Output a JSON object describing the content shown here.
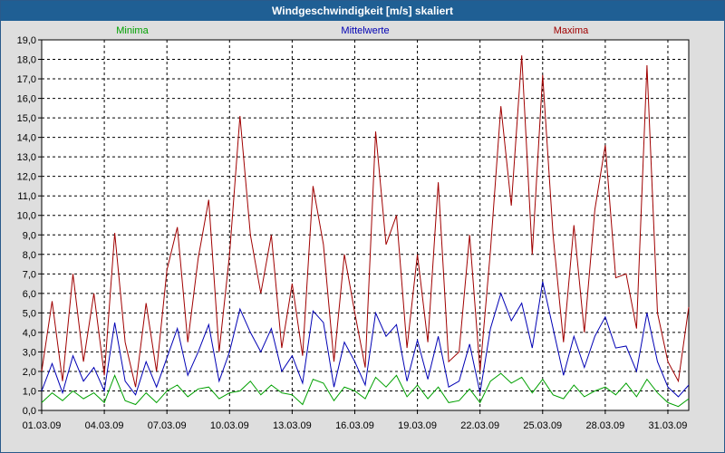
{
  "window": {
    "title": "Windgeschwindigkeit [m/s] skaliert"
  },
  "chart_data": {
    "type": "line",
    "title": "Windgeschwindigkeit [m/s] skaliert",
    "xlabel": "",
    "ylabel": "",
    "ylim": [
      0,
      19
    ],
    "xlim": [
      0,
      31
    ],
    "grid": true,
    "y_ticks": [
      "0,0",
      "1,0",
      "2,0",
      "3,0",
      "4,0",
      "5,0",
      "6,0",
      "7,0",
      "8,0",
      "9,0",
      "10,0",
      "11,0",
      "12,0",
      "13,0",
      "14,0",
      "15,0",
      "16,0",
      "17,0",
      "18,0",
      "19,0"
    ],
    "x_ticks": [
      {
        "day": 0,
        "label": "01.03.09"
      },
      {
        "day": 3,
        "label": "04.03.09"
      },
      {
        "day": 6,
        "label": "07.03.09"
      },
      {
        "day": 9,
        "label": "10.03.09"
      },
      {
        "day": 12,
        "label": "13.03.09"
      },
      {
        "day": 15,
        "label": "16.03.09"
      },
      {
        "day": 18,
        "label": "19.03.09"
      },
      {
        "day": 21,
        "label": "22.03.09"
      },
      {
        "day": 24,
        "label": "25.03.09"
      },
      {
        "day": 27,
        "label": "28.03.09"
      },
      {
        "day": 30,
        "label": "31.03.09"
      }
    ],
    "series": [
      {
        "name": "Minima",
        "color": "#00a000",
        "legend_position": "left",
        "x": [
          0,
          0.5,
          1,
          1.5,
          2,
          2.5,
          3,
          3.5,
          4,
          4.5,
          5,
          5.5,
          6,
          6.5,
          7,
          7.5,
          8,
          8.5,
          9,
          9.5,
          10,
          10.5,
          11,
          11.5,
          12,
          12.5,
          13,
          13.5,
          14,
          14.5,
          15,
          15.5,
          16,
          16.5,
          17,
          17.5,
          18,
          18.5,
          19,
          19.5,
          20,
          20.5,
          21,
          21.5,
          22,
          22.5,
          23,
          23.5,
          24,
          24.5,
          25,
          25.5,
          26,
          26.5,
          27,
          27.5,
          28,
          28.5,
          29,
          29.5,
          30,
          30.5,
          31
        ],
        "values": [
          0.4,
          0.9,
          0.5,
          1.0,
          0.6,
          0.9,
          0.4,
          1.8,
          0.5,
          0.3,
          0.9,
          0.4,
          1.0,
          1.3,
          0.7,
          1.1,
          1.2,
          0.6,
          0.9,
          1.0,
          1.5,
          0.8,
          1.3,
          0.9,
          0.8,
          0.3,
          1.6,
          1.4,
          0.5,
          1.2,
          1.0,
          0.6,
          1.7,
          1.2,
          1.8,
          0.7,
          1.3,
          0.6,
          1.2,
          0.4,
          0.5,
          1.1,
          0.4,
          1.5,
          1.9,
          1.4,
          1.7,
          0.9,
          1.6,
          0.8,
          0.6,
          1.3,
          0.7,
          1.0,
          1.2,
          0.8,
          1.4,
          0.7,
          1.6,
          0.9,
          0.4,
          0.2,
          0.6
        ]
      },
      {
        "name": "Mittelwerte",
        "color": "#0000b4",
        "legend_position": "center",
        "x": [
          0,
          0.5,
          1,
          1.5,
          2,
          2.5,
          3,
          3.5,
          4,
          4.5,
          5,
          5.5,
          6,
          6.5,
          7,
          7.5,
          8,
          8.5,
          9,
          9.5,
          10,
          10.5,
          11,
          11.5,
          12,
          12.5,
          13,
          13.5,
          14,
          14.5,
          15,
          15.5,
          16,
          16.5,
          17,
          17.5,
          18,
          18.5,
          19,
          19.5,
          20,
          20.5,
          21,
          21.5,
          22,
          22.5,
          23,
          23.5,
          24,
          24.5,
          25,
          25.5,
          26,
          26.5,
          27,
          27.5,
          28,
          28.5,
          29,
          29.5,
          30,
          30.5,
          31
        ],
        "values": [
          1.0,
          2.4,
          0.9,
          2.8,
          1.5,
          2.2,
          1.0,
          4.5,
          1.5,
          0.8,
          2.5,
          1.2,
          2.7,
          4.2,
          1.8,
          3.0,
          4.4,
          1.5,
          3.0,
          5.2,
          4.0,
          3.0,
          4.2,
          2.0,
          2.8,
          1.4,
          5.1,
          4.5,
          1.2,
          3.5,
          2.5,
          1.3,
          5.0,
          3.8,
          4.4,
          1.5,
          3.6,
          1.6,
          3.8,
          1.2,
          1.5,
          3.4,
          0.9,
          4.2,
          6.0,
          4.6,
          5.5,
          3.2,
          6.6,
          4.2,
          1.8,
          3.8,
          2.2,
          3.8,
          4.8,
          3.2,
          3.3,
          2.0,
          5.0,
          2.5,
          1.2,
          0.7,
          1.3
        ]
      },
      {
        "name": "Maxima",
        "color": "#a00000",
        "legend_position": "right",
        "x": [
          0,
          0.5,
          1,
          1.5,
          2,
          2.5,
          3,
          3.5,
          4,
          4.5,
          5,
          5.5,
          6,
          6.5,
          7,
          7.5,
          8,
          8.5,
          9,
          9.5,
          10,
          10.5,
          11,
          11.5,
          12,
          12.5,
          13,
          13.5,
          14,
          14.5,
          15,
          15.5,
          16,
          16.5,
          17,
          17.5,
          18,
          18.5,
          19,
          19.5,
          20,
          20.5,
          21,
          21.5,
          22,
          22.5,
          23,
          23.5,
          24,
          24.5,
          25,
          25.5,
          26,
          26.5,
          27,
          27.5,
          28,
          28.5,
          29,
          29.5,
          30,
          30.5,
          31
        ],
        "values": [
          2.0,
          5.6,
          1.5,
          7.0,
          2.5,
          6.0,
          1.8,
          9.1,
          3.5,
          1.2,
          5.5,
          2.0,
          7.2,
          9.4,
          3.5,
          7.8,
          10.8,
          3.0,
          8.0,
          15.1,
          9.0,
          6.0,
          9.0,
          3.2,
          6.5,
          2.8,
          11.5,
          8.5,
          2.5,
          8.0,
          5.0,
          2.2,
          14.3,
          8.5,
          10.0,
          3.2,
          8.0,
          3.5,
          11.7,
          2.5,
          3.0,
          9.0,
          2.0,
          8.2,
          15.6,
          10.5,
          18.2,
          8.0,
          17.2,
          9.0,
          3.5,
          9.5,
          4.0,
          10.3,
          13.6,
          6.8,
          7.0,
          4.2,
          17.7,
          5.0,
          2.5,
          1.5,
          5.3
        ]
      }
    ]
  }
}
